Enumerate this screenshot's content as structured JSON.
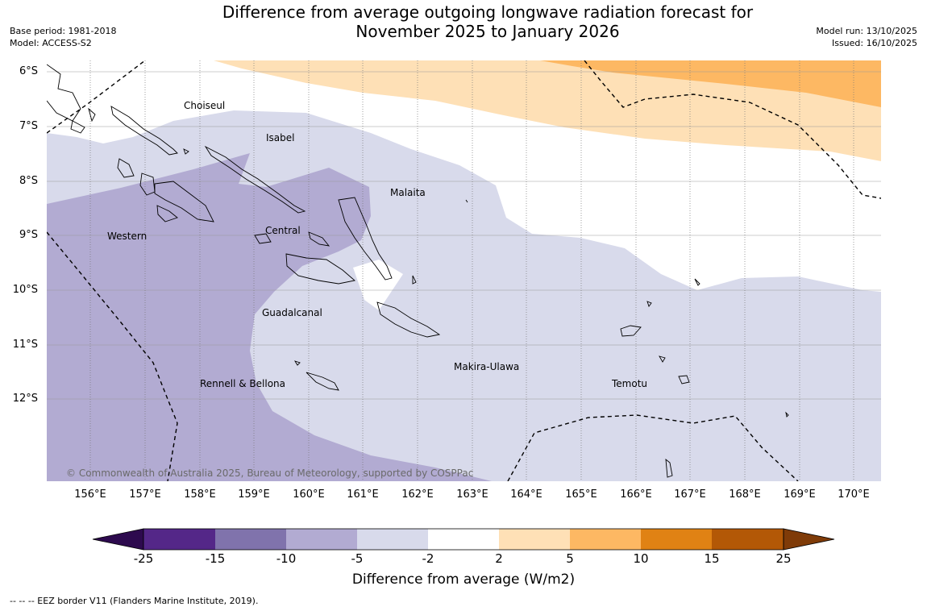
{
  "title_line1": "Difference from average outgoing longwave radiation forecast for",
  "title_line2": "November 2025 to January 2026",
  "base_period": "Base period: 1981-2018",
  "model": "Model: ACCESS-S2",
  "model_run": "Model run: 13/10/2025",
  "issued": "Issued: 16/10/2025",
  "lat_labels": [
    "6°S",
    "7°S",
    "8°S",
    "9°S",
    "10°S",
    "11°S",
    "12°S"
  ],
  "lon_labels": [
    "156°E",
    "157°E",
    "158°E",
    "159°E",
    "160°E",
    "161°E",
    "162°E",
    "163°E",
    "164°E",
    "165°E",
    "166°E",
    "167°E",
    "168°E",
    "169°E",
    "170°E"
  ],
  "regions": {
    "choiseul": "Choiseul",
    "isabel": "Isabel",
    "malaita": "Malaita",
    "western": "Western",
    "central": "Central",
    "guadalcanal": "Guadalcanal",
    "makira": "Makira-Ulawa",
    "temotu": "Temotu",
    "rennell": "Rennell & Bellona"
  },
  "copyright": "© Commonwealth of Australia 2025, Bureau of Meteorology, supported by COSPPac",
  "colorbar": {
    "title": "Difference from average (W/m2)",
    "tick_labels": [
      "-25",
      "-15",
      "-10",
      "-5",
      "-2",
      "2",
      "5",
      "10",
      "15",
      "25"
    ],
    "colors": [
      "#2d0a4e",
      "#542788",
      "#8073ac",
      "#b2abd2",
      "#d8daeb",
      "#ffffff",
      "#fee0b6",
      "#fdb863",
      "#e08214",
      "#b35806",
      "#7f3b08"
    ]
  },
  "eez_note": "--  --  -- EEZ border V11 (Flanders Marine Institute, 2019)."
}
